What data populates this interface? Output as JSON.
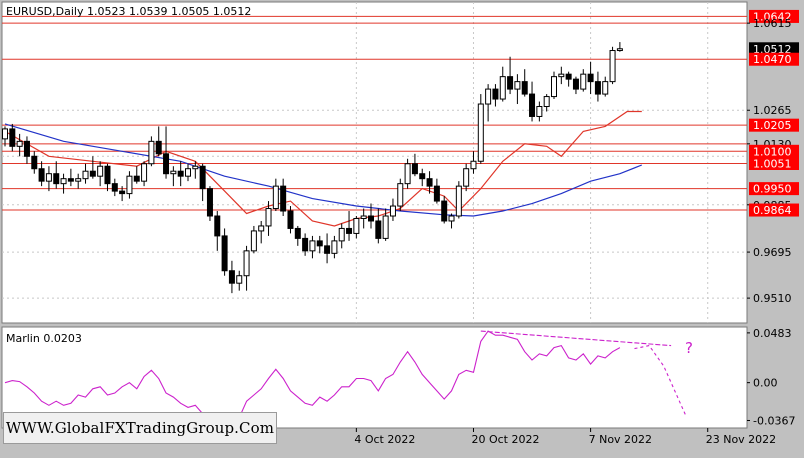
{
  "header": {
    "text": "EURUSD,Daily  1.0523 1.0539 1.0505 1.0512"
  },
  "indicator": {
    "label": "Marlin 0.0203",
    "annotation": "?"
  },
  "watermark": {
    "text": "WWW.GlobalFXTradingGroup.Com"
  },
  "colors": {
    "background": "#ffffff",
    "level_line": "#e0362a",
    "ma_fast": "#e0362a",
    "ma_slow": "#2233c8",
    "oscillator": "#cc22cc",
    "last_price_tag": "#000000",
    "level_tag": "#ff0000"
  },
  "chart_data": [
    {
      "type": "candlestick",
      "title": "EURUSD,Daily",
      "ylim": [
        0.941,
        1.07
      ],
      "price_scale_ticks": [
        "1.0642",
        "1.0615",
        "1.0512",
        "1.0470",
        "1.0265",
        "1.0205",
        "1.0130",
        "1.0100",
        "1.0051",
        "0.9950",
        "0.9885",
        "0.9864",
        "0.9695",
        "0.9510"
      ],
      "x_ticks": [
        {
          "label": "4 Oct 2022",
          "index": 48
        },
        {
          "label": "20 Oct 2022",
          "index": 64
        },
        {
          "label": "7 Nov 2022",
          "index": 80
        },
        {
          "label": "23 Nov 2022",
          "index": 96
        }
      ],
      "horizontal_levels": [
        1.0642,
        1.0615,
        1.047,
        1.0205,
        1.013,
        1.01,
        1.0051,
        0.995,
        0.9864
      ],
      "last_price": 1.0512,
      "candles": [
        [
          1.015,
          1.02,
          1.012,
          1.019
        ],
        [
          1.019,
          1.021,
          1.01,
          1.012
        ],
        [
          1.012,
          1.017,
          1.008,
          1.014
        ],
        [
          1.014,
          1.016,
          1.005,
          1.008
        ],
        [
          1.008,
          1.01,
          1.001,
          1.003
        ],
        [
          1.003,
          1.006,
          0.996,
          0.998
        ],
        [
          0.998,
          1.004,
          0.994,
          1.001
        ],
        [
          1.001,
          1.006,
          0.995,
          0.997
        ],
        [
          0.997,
          1.001,
          0.993,
          0.999
        ],
        [
          0.999,
          1.003,
          0.996,
          0.998
        ],
        [
          0.998,
          1.001,
          0.995,
          0.999
        ],
        [
          0.999,
          1.005,
          0.997,
          1.002
        ],
        [
          1.002,
          1.008,
          0.999,
          1.0
        ],
        [
          1.0,
          1.006,
          0.996,
          1.004
        ],
        [
          1.004,
          1.005,
          0.994,
          0.997
        ],
        [
          0.997,
          0.999,
          0.992,
          0.994
        ],
        [
          0.994,
          0.996,
          0.99,
          0.993
        ],
        [
          0.993,
          1.002,
          0.991,
          1.0
        ],
        [
          1.0,
          1.004,
          0.997,
          0.998
        ],
        [
          0.998,
          1.006,
          0.996,
          1.005
        ],
        [
          1.005,
          1.016,
          1.004,
          1.014
        ],
        [
          1.014,
          1.02,
          1.008,
          1.009
        ],
        [
          1.009,
          1.02,
          0.999,
          1.001
        ],
        [
          1.001,
          1.004,
          0.996,
          1.002
        ],
        [
          1.002,
          1.006,
          0.996,
          1.0
        ],
        [
          1.0,
          1.005,
          0.998,
          1.003
        ],
        [
          1.003,
          1.006,
          0.999,
          1.004
        ],
        [
          1.004,
          1.005,
          0.99,
          0.995
        ],
        [
          0.995,
          0.996,
          0.982,
          0.984
        ],
        [
          0.984,
          0.986,
          0.97,
          0.976
        ],
        [
          0.976,
          0.979,
          0.96,
          0.962
        ],
        [
          0.962,
          0.966,
          0.953,
          0.957
        ],
        [
          0.957,
          0.962,
          0.954,
          0.96
        ],
        [
          0.96,
          0.972,
          0.954,
          0.97
        ],
        [
          0.97,
          0.98,
          0.969,
          0.978
        ],
        [
          0.978,
          0.982,
          0.973,
          0.98
        ],
        [
          0.98,
          0.99,
          0.976,
          0.987
        ],
        [
          0.987,
          0.999,
          0.986,
          0.996
        ],
        [
          0.996,
          0.999,
          0.984,
          0.986
        ],
        [
          0.986,
          0.988,
          0.977,
          0.979
        ],
        [
          0.979,
          0.98,
          0.972,
          0.975
        ],
        [
          0.975,
          0.977,
          0.968,
          0.97
        ],
        [
          0.97,
          0.976,
          0.967,
          0.974
        ],
        [
          0.974,
          0.976,
          0.969,
          0.972
        ],
        [
          0.972,
          0.977,
          0.965,
          0.969
        ],
        [
          0.969,
          0.976,
          0.967,
          0.974
        ],
        [
          0.974,
          0.981,
          0.971,
          0.979
        ],
        [
          0.979,
          0.986,
          0.974,
          0.977
        ],
        [
          0.977,
          0.984,
          0.975,
          0.983
        ],
        [
          0.983,
          0.987,
          0.979,
          0.984
        ],
        [
          0.984,
          0.989,
          0.979,
          0.982
        ],
        [
          0.982,
          0.987,
          0.973,
          0.975
        ],
        [
          0.975,
          0.987,
          0.974,
          0.984
        ],
        [
          0.984,
          0.991,
          0.982,
          0.988
        ],
        [
          0.988,
          0.999,
          0.986,
          0.997
        ],
        [
          0.997,
          1.007,
          0.995,
          1.005
        ],
        [
          1.005,
          1.009,
          1.0,
          1.001
        ],
        [
          1.001,
          1.003,
          0.996,
          0.999
        ],
        [
          0.999,
          1.002,
          0.993,
          0.996
        ],
        [
          0.996,
          0.999,
          0.989,
          0.99
        ],
        [
          0.99,
          0.992,
          0.981,
          0.982
        ],
        [
          0.982,
          0.985,
          0.979,
          0.984
        ],
        [
          0.984,
          0.998,
          0.983,
          0.996
        ],
        [
          0.996,
          1.005,
          0.994,
          1.003
        ],
        [
          1.003,
          1.01,
          1.001,
          1.006
        ],
        [
          1.006,
          1.033,
          1.005,
          1.029
        ],
        [
          1.029,
          1.037,
          1.022,
          1.035
        ],
        [
          1.035,
          1.037,
          1.028,
          1.031
        ],
        [
          1.031,
          1.044,
          1.03,
          1.04
        ],
        [
          1.04,
          1.048,
          1.033,
          1.035
        ],
        [
          1.035,
          1.041,
          1.029,
          1.038
        ],
        [
          1.038,
          1.043,
          1.032,
          1.033
        ],
        [
          1.033,
          1.038,
          1.022,
          1.024
        ],
        [
          1.024,
          1.03,
          1.022,
          1.028
        ],
        [
          1.028,
          1.033,
          1.026,
          1.032
        ],
        [
          1.032,
          1.042,
          1.031,
          1.04
        ],
        [
          1.04,
          1.044,
          1.037,
          1.041
        ],
        [
          1.041,
          1.042,
          1.036,
          1.039
        ],
        [
          1.039,
          1.04,
          1.033,
          1.035
        ],
        [
          1.035,
          1.043,
          1.034,
          1.041
        ],
        [
          1.041,
          1.046,
          1.033,
          1.038
        ],
        [
          1.038,
          1.042,
          1.03,
          1.033
        ],
        [
          1.033,
          1.04,
          1.032,
          1.038
        ],
        [
          1.038,
          1.052,
          1.037,
          1.0505
        ],
        [
          1.0505,
          1.0539,
          1.05,
          1.0512
        ]
      ],
      "moving_averages": [
        {
          "role": "fast",
          "color": "#e0362a",
          "points": [
            [
              0,
              1.018
            ],
            [
              6,
              1.008
            ],
            [
              12,
              1.006
            ],
            [
              18,
              1.004
            ],
            [
              22,
              1.01
            ],
            [
              26,
              1.006
            ],
            [
              30,
              0.994
            ],
            [
              33,
              0.985
            ],
            [
              36,
              0.988
            ],
            [
              39,
              0.99
            ],
            [
              42,
              0.982
            ],
            [
              45,
              0.98
            ],
            [
              48,
              0.983
            ],
            [
              51,
              0.984
            ],
            [
              54,
              0.987
            ],
            [
              57,
              0.995
            ],
            [
              60,
              0.992
            ],
            [
              62,
              0.986
            ],
            [
              65,
              0.995
            ],
            [
              68,
              1.006
            ],
            [
              71,
              1.013
            ],
            [
              74,
              1.012
            ],
            [
              76,
              1.008
            ],
            [
              79,
              1.018
            ],
            [
              82,
              1.02
            ],
            [
              85,
              1.026
            ],
            [
              87,
              1.026
            ]
          ]
        },
        {
          "role": "slow",
          "color": "#2233c8",
          "points": [
            [
              0,
              1.021
            ],
            [
              8,
              1.014
            ],
            [
              16,
              1.01
            ],
            [
              24,
              1.006
            ],
            [
              30,
              1.0
            ],
            [
              36,
              0.996
            ],
            [
              42,
              0.991
            ],
            [
              48,
              0.988
            ],
            [
              54,
              0.986
            ],
            [
              60,
              0.9845
            ],
            [
              64,
              0.984
            ],
            [
              68,
              0.986
            ],
            [
              72,
              0.989
            ],
            [
              76,
              0.993
            ],
            [
              80,
              0.998
            ],
            [
              84,
              1.001
            ],
            [
              87,
              1.0045
            ]
          ]
        }
      ]
    },
    {
      "type": "line",
      "title": "Marlin 0.0203",
      "ylim": [
        -0.044,
        0.054
      ],
      "y_ticks": [
        "0.0483",
        "0.00",
        "-0.0367"
      ],
      "series": [
        {
          "values": [
            0.0,
            0.002,
            0.001,
            -0.004,
            -0.01,
            -0.018,
            -0.022,
            -0.018,
            -0.022,
            -0.02,
            -0.012,
            -0.014,
            -0.006,
            -0.004,
            -0.012,
            -0.01,
            -0.004,
            0.0,
            -0.006,
            0.006,
            0.012,
            0.004,
            -0.01,
            -0.014,
            -0.02,
            -0.024,
            -0.022,
            -0.03,
            -0.04,
            -0.045,
            -0.048,
            -0.046,
            -0.034,
            -0.018,
            -0.012,
            -0.006,
            0.004,
            0.013,
            0.004,
            -0.008,
            -0.014,
            -0.02,
            -0.022,
            -0.014,
            -0.018,
            -0.012,
            -0.004,
            -0.004,
            0.004,
            0.004,
            0.002,
            -0.008,
            0.004,
            0.008,
            0.02,
            0.03,
            0.02,
            0.008,
            0.0,
            -0.008,
            -0.016,
            -0.008,
            0.008,
            0.012,
            0.01,
            0.04,
            0.05,
            0.046,
            0.046,
            0.044,
            0.042,
            0.03,
            0.022,
            0.028,
            0.026,
            0.034,
            0.036,
            0.024,
            0.022,
            0.028,
            0.018,
            0.026,
            0.024,
            0.03,
            0.034
          ]
        },
        {
          "role": "forecast",
          "values": [
            [
              86,
              0.033
            ],
            [
              88,
              0.036
            ],
            [
              90,
              0.016
            ],
            [
              93,
              -0.032
            ]
          ]
        },
        {
          "role": "divergence",
          "values": [
            [
              65,
              0.05
            ],
            [
              91,
              0.036
            ]
          ]
        }
      ]
    }
  ]
}
